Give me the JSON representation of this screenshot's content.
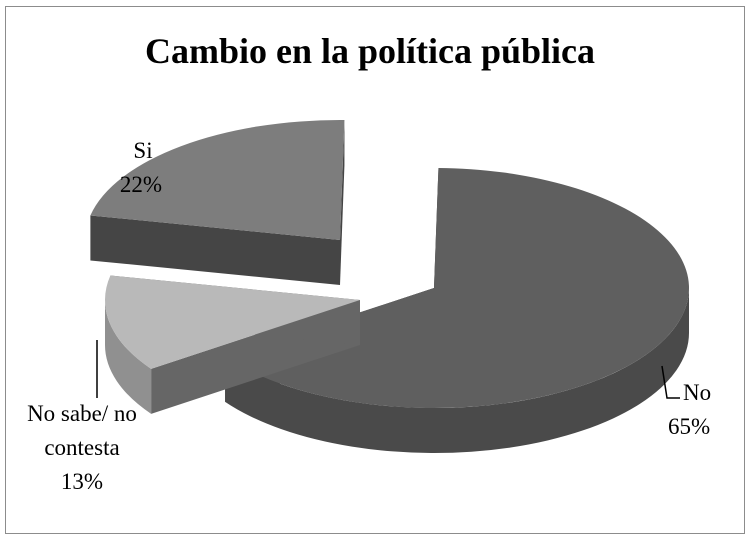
{
  "chart_data": {
    "type": "pie",
    "title": "Cambio en la política pública",
    "slices": [
      {
        "name": "No",
        "value": 65,
        "label": "65%",
        "color": "#5f5f5f"
      },
      {
        "name": "No sabe/ no contesta",
        "value": 13,
        "label": "13%",
        "color": "#b9b9b9"
      },
      {
        "name": "Si",
        "value": 22,
        "label": "22%",
        "color": "#7d7d7d"
      }
    ],
    "style": "3d-exploded"
  },
  "labels": {
    "no_name": "No",
    "no_pct": "65%",
    "ns_line1": "No sabe/ no",
    "ns_line2": "contesta",
    "ns_pct": "13%",
    "si_name": "Si",
    "si_pct": "22%"
  }
}
